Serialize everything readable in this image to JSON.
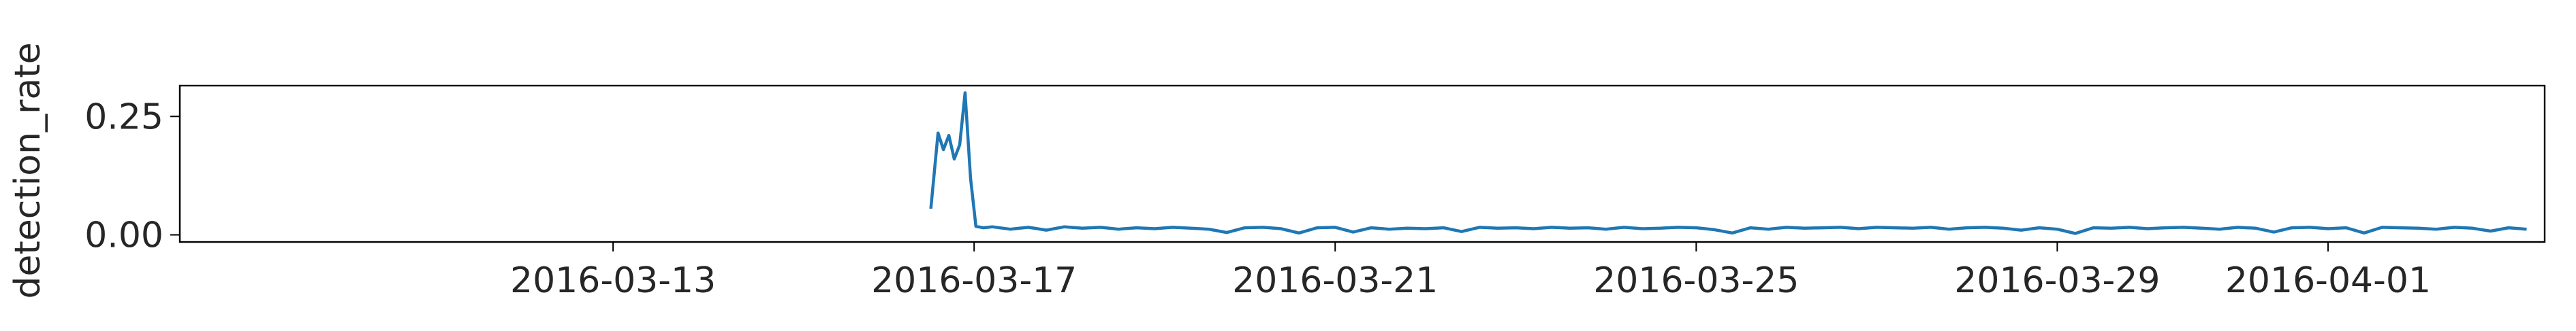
{
  "chart_data": {
    "type": "line",
    "title": "",
    "xlabel": "",
    "ylabel": "detection_rate",
    "x_tick_labels": [
      "2016-03-13",
      "2016-03-17",
      "2016-03-21",
      "2016-03-25",
      "2016-03-29",
      "2016-04-01"
    ],
    "y_tick_labels": [
      "0.00",
      "0.25"
    ],
    "x_tick_positions_days": [
      4,
      8,
      12,
      16,
      20,
      23
    ],
    "ylim": [
      -0.015,
      0.315
    ],
    "xlim_days": [
      -0.8,
      25.4
    ],
    "grid": false,
    "legend": "none",
    "line_color": "#1f77b4",
    "series": [
      {
        "x_days": [
          7.52,
          7.6,
          7.66,
          7.72,
          7.78,
          7.84,
          7.9,
          7.96,
          8.02,
          8.1,
          8.2,
          8.4,
          8.6,
          8.8,
          9.0,
          9.2,
          9.4,
          9.6,
          9.8,
          10.0,
          10.2,
          10.4,
          10.6,
          10.8,
          11.0,
          11.2,
          11.4,
          11.6,
          11.8,
          12.0,
          12.2,
          12.4,
          12.6,
          12.8,
          13.0,
          13.2,
          13.4,
          13.6,
          13.8,
          14.0,
          14.2,
          14.4,
          14.6,
          14.8,
          15.0,
          15.2,
          15.4,
          15.6,
          15.8,
          16.0,
          16.2,
          16.4,
          16.6,
          16.8,
          17.0,
          17.2,
          17.4,
          17.6,
          17.8,
          18.0,
          18.2,
          18.4,
          18.6,
          18.8,
          19.0,
          19.2,
          19.4,
          19.6,
          19.8,
          20.0,
          20.2,
          20.4,
          20.6,
          20.8,
          21.0,
          21.2,
          21.4,
          21.6,
          21.8,
          22.0,
          22.2,
          22.4,
          22.6,
          22.8,
          23.0,
          23.2,
          23.4,
          23.6,
          23.8,
          24.0,
          24.2,
          24.4,
          24.6,
          24.8,
          25.0,
          25.2
        ],
        "values": [
          0.055,
          0.215,
          0.18,
          0.21,
          0.16,
          0.19,
          0.3,
          0.12,
          0.018,
          0.015,
          0.017,
          0.012,
          0.016,
          0.01,
          0.017,
          0.014,
          0.016,
          0.012,
          0.015,
          0.013,
          0.016,
          0.014,
          0.012,
          0.005,
          0.015,
          0.016,
          0.013,
          0.004,
          0.015,
          0.016,
          0.006,
          0.015,
          0.012,
          0.014,
          0.013,
          0.015,
          0.007,
          0.016,
          0.014,
          0.015,
          0.013,
          0.016,
          0.014,
          0.015,
          0.012,
          0.016,
          0.013,
          0.014,
          0.016,
          0.015,
          0.011,
          0.004,
          0.015,
          0.012,
          0.016,
          0.014,
          0.015,
          0.016,
          0.013,
          0.016,
          0.015,
          0.014,
          0.016,
          0.012,
          0.015,
          0.016,
          0.014,
          0.01,
          0.015,
          0.012,
          0.003,
          0.015,
          0.014,
          0.016,
          0.013,
          0.015,
          0.016,
          0.014,
          0.012,
          0.016,
          0.014,
          0.006,
          0.015,
          0.016,
          0.013,
          0.015,
          0.004,
          0.016,
          0.015,
          0.014,
          0.012,
          0.016,
          0.014,
          0.008,
          0.015,
          0.012
        ]
      }
    ]
  }
}
